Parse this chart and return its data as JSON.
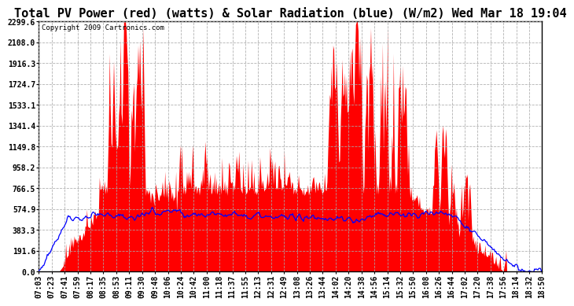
{
  "title": "Total PV Power (red) (watts) & Solar Radiation (blue) (W/m2) Wed Mar 18 19:04",
  "copyright": "Copyright 2009 Cartronics.com",
  "yticks": [
    0.0,
    191.6,
    383.3,
    574.9,
    766.5,
    958.2,
    1149.8,
    1341.4,
    1533.1,
    1724.7,
    1916.3,
    2108.0,
    2299.6
  ],
  "ymax": 2299.6,
  "ymin": 0.0,
  "xtick_labels": [
    "07:03",
    "07:23",
    "07:41",
    "07:59",
    "08:17",
    "08:35",
    "08:53",
    "09:11",
    "09:30",
    "09:48",
    "10:06",
    "10:24",
    "10:42",
    "11:00",
    "11:18",
    "11:37",
    "11:55",
    "12:13",
    "12:31",
    "12:49",
    "13:08",
    "13:26",
    "13:44",
    "14:02",
    "14:20",
    "14:38",
    "14:56",
    "15:14",
    "15:32",
    "15:50",
    "16:08",
    "16:26",
    "16:44",
    "17:02",
    "17:20",
    "17:38",
    "17:56",
    "18:14",
    "18:32",
    "18:50"
  ],
  "background_color": "#ffffff",
  "plot_bg_color": "#ffffff",
  "grid_color": "#aaaaaa",
  "red_color": "#ff0000",
  "blue_color": "#0000ff",
  "title_fontsize": 11,
  "tick_fontsize": 7.0,
  "copyright_fontsize": 6.5
}
